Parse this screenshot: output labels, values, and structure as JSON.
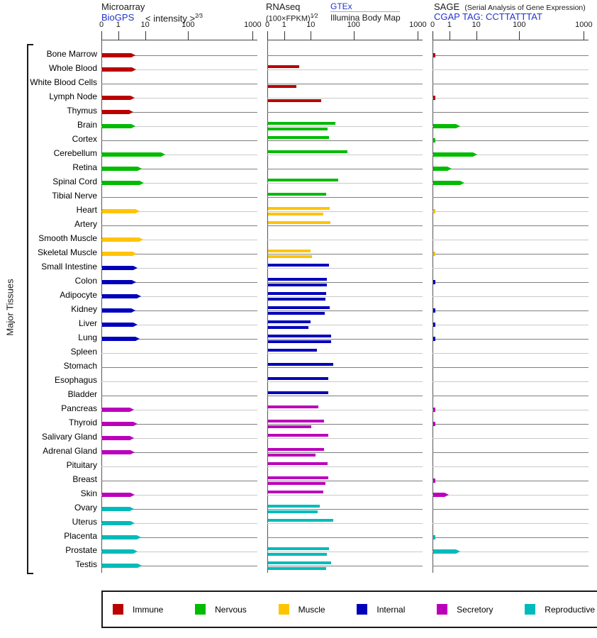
{
  "header": {
    "microarray": {
      "title": "Microarray",
      "link": "BioGPS",
      "scale": "< intensity >",
      "scale_sup": "2⁄3"
    },
    "rnaseq": {
      "title": "RNAseq",
      "scale": "(100×FPKM)",
      "scale_sup": "1⁄2",
      "link": "GTEx",
      "sublabel": "Illumina Body Map"
    },
    "sage": {
      "title": "SAGE",
      "subtitle": "(Serial Analysis of Gene Expression)",
      "link": "CGAP",
      "tag_label": "TAG: CCTTATTTAT"
    }
  },
  "sidebar": {
    "axis_label": "Major Tissues"
  },
  "legend": {
    "items": [
      {
        "label": "Immune",
        "color": "#bb0000"
      },
      {
        "label": "Nervous",
        "color": "#00bb00"
      },
      {
        "label": "Muscle",
        "color": "#ffc400"
      },
      {
        "label": "Internal",
        "color": "#0000bb"
      },
      {
        "label": "Secretory",
        "color": "#bb00bb"
      },
      {
        "label": "Reproductive",
        "color": "#00bbbb"
      }
    ]
  },
  "chart_data": {
    "type": "bar",
    "orientation": "horizontal",
    "note": "ma/gt/il/sg are bar lengths in % of panel width; maV/gtV/ilV/sgV are approximate values read off the 0-1-10-100-1000 axis. gt = RNAseq GTEx bar (above row line), il = RNAseq Illumina Body Map bar (below row line).",
    "axis": {
      "tick_labels": [
        "0",
        "1",
        "10",
        "100",
        "1000"
      ],
      "scale": "decades 0/1/10/100/1000, non-linear"
    },
    "panels": [
      {
        "id": "microarray",
        "source": "BioGPS",
        "units": "intensity^(2/3)"
      },
      {
        "id": "rnaseq",
        "source": "GTEx / Illumina Body Map",
        "units": "(100×FPKM)^(1/2)"
      },
      {
        "id": "sage",
        "source": "CGAP",
        "units": "tag count"
      }
    ],
    "categories": {
      "immune": "#bb0000",
      "nervous": "#00bb00",
      "muscle": "#ffc400",
      "internal": "#0000bb",
      "secretory": "#bb00bb",
      "reproductive": "#00bbbb"
    },
    "rows": [
      {
        "t": "Bone Marrow",
        "c": "immune",
        "ma": 21.4,
        "maV": 4.2,
        "sg": 1.5,
        "sgV": 0.1
      },
      {
        "t": "Whole Blood",
        "c": "immune",
        "ma": 21.8,
        "maV": 4.4,
        "gt": 20.1,
        "gtV": 3.5
      },
      {
        "t": "White Blood Cells",
        "c": "immune",
        "il": 18.3,
        "ilV": 2.7
      },
      {
        "t": "Lymph Node",
        "c": "immune",
        "ma": 20.9,
        "maV": 3.9,
        "il": 34.2,
        "ilV": 17,
        "sg": 1.5,
        "sgV": 0.1
      },
      {
        "t": "Thymus",
        "c": "immune",
        "ma": 20.0,
        "maV": 3.4
      },
      {
        "t": "Brain",
        "c": "nervous",
        "ma": 21.4,
        "maV": 4.2,
        "gt": 43.4,
        "gtV": 34,
        "il": 38.4,
        "ilV": 24,
        "sg": 17.3,
        "sgV": 2.4
      },
      {
        "t": "Cortex",
        "c": "nervous",
        "gt": 39.3,
        "gtV": 26,
        "sg": 1.5,
        "sgV": 0.1
      },
      {
        "t": "Cerebellum",
        "c": "nervous",
        "ma": 40.5,
        "maV": 28,
        "gt": 51.1,
        "gtV": 65,
        "sg": 28.2,
        "sgV": 10
      },
      {
        "t": "Retina",
        "c": "nervous",
        "ma": 25.5,
        "maV": 7.1,
        "sg": 11.8,
        "sgV": 1.1
      },
      {
        "t": "Spinal Cord",
        "c": "nervous",
        "ma": 26.8,
        "maV": 8.4,
        "gt": 45.2,
        "gtV": 39,
        "sg": 20.0,
        "sgV": 3.4
      },
      {
        "t": "Tibial Nerve",
        "c": "nervous",
        "gt": 37.4,
        "gtV": 22
      },
      {
        "t": "Heart",
        "c": "muscle",
        "ma": 24.1,
        "maV": 5.8,
        "gt": 39.7,
        "gtV": 26,
        "il": 35.6,
        "ilV": 19,
        "sg": 1.5,
        "sgV": 0.1
      },
      {
        "t": "Artery",
        "c": "muscle",
        "gt": 40.2,
        "gtV": 27
      },
      {
        "t": "Smooth Muscle",
        "c": "muscle",
        "ma": 26.4,
        "maV": 8.0
      },
      {
        "t": "Skeletal Muscle",
        "c": "muscle",
        "ma": 22.3,
        "maV": 4.6,
        "gt": 27.4,
        "gtV": 9.2,
        "il": 28.3,
        "ilV": 10,
        "sg": 1.5,
        "sgV": 0.1
      },
      {
        "t": "Small Intestine",
        "c": "internal",
        "ma": 22.7,
        "maV": 4.9,
        "gt": 39.3,
        "gtV": 26
      },
      {
        "t": "Colon",
        "c": "internal",
        "ma": 21.8,
        "maV": 4.4,
        "gt": 37.9,
        "gtV": 23,
        "il": 37.9,
        "ilV": 23,
        "sg": 1.5,
        "sgV": 0.1
      },
      {
        "t": "Adipocyte",
        "c": "internal",
        "ma": 25.0,
        "maV": 6.6,
        "gt": 37.4,
        "gtV": 22,
        "il": 37.0,
        "ilV": 21
      },
      {
        "t": "Kidney",
        "c": "internal",
        "ma": 21.4,
        "maV": 4.2,
        "gt": 39.7,
        "gtV": 26,
        "il": 36.5,
        "ilV": 20,
        "sg": 1.5,
        "sgV": 0.1
      },
      {
        "t": "Liver",
        "c": "internal",
        "ma": 22.7,
        "maV": 4.9,
        "gt": 27.4,
        "gtV": 9.2,
        "il": 26.0,
        "ilV": 8.3,
        "sg": 1.5,
        "sgV": 0.1
      },
      {
        "t": "Lung",
        "c": "internal",
        "ma": 24.1,
        "maV": 5.8,
        "gt": 40.6,
        "gtV": 28,
        "il": 40.6,
        "ilV": 28,
        "sg": 1.5,
        "sgV": 0.1
      },
      {
        "t": "Spleen",
        "c": "internal",
        "gt": 31.5,
        "gtV": 13
      },
      {
        "t": "Stomach",
        "c": "internal",
        "gt": 42.0,
        "gtV": 31
      },
      {
        "t": "Esophagus",
        "c": "internal",
        "gt": 38.8,
        "gtV": 25
      },
      {
        "t": "Bladder",
        "c": "internal",
        "gt": 38.8,
        "gtV": 25
      },
      {
        "t": "Pancreas",
        "c": "secretory",
        "ma": 20.5,
        "maV": 3.6,
        "gt": 32.4,
        "gtV": 14,
        "sg": 1.5,
        "sgV": 0.1
      },
      {
        "t": "Thyroid",
        "c": "secretory",
        "ma": 22.7,
        "maV": 4.9,
        "gt": 36.1,
        "gtV": 20,
        "il": 27.9,
        "ilV": 9.9,
        "sg": 1.5,
        "sgV": 0.1
      },
      {
        "t": "Salivary Gland",
        "c": "secretory",
        "ma": 20.5,
        "maV": 3.6,
        "gt": 38.8,
        "gtV": 25
      },
      {
        "t": "Adrenal Gland",
        "c": "secretory",
        "ma": 20.9,
        "maV": 3.9,
        "gt": 36.1,
        "gtV": 20,
        "il": 30.6,
        "ilV": 12
      },
      {
        "t": "Pituitary",
        "c": "secretory",
        "gt": 38.4,
        "gtV": 24
      },
      {
        "t": "Breast",
        "c": "secretory",
        "gt": 38.8,
        "gtV": 25,
        "il": 37.0,
        "ilV": 21,
        "sg": 1.5,
        "sgV": 0.1
      },
      {
        "t": "Skin",
        "c": "secretory",
        "ma": 20.9,
        "maV": 3.9,
        "gt": 35.6,
        "gtV": 19,
        "sg": 10.0,
        "sgV": 0.9
      },
      {
        "t": "Ovary",
        "c": "reproductive",
        "ma": 20.5,
        "maV": 3.6,
        "gt": 33.3,
        "gtV": 16,
        "il": 32.0,
        "ilV": 14
      },
      {
        "t": "Uterus",
        "c": "reproductive",
        "ma": 20.9,
        "maV": 3.9,
        "gt": 42.0,
        "gtV": 31
      },
      {
        "t": "Placenta",
        "c": "reproductive",
        "ma": 25.0,
        "maV": 6.6,
        "sg": 1.5,
        "sgV": 0.1
      },
      {
        "t": "Prostate",
        "c": "reproductive",
        "ma": 22.7,
        "maV": 4.9,
        "gt": 39.3,
        "gtV": 26,
        "il": 37.9,
        "ilV": 23,
        "sg": 17.3,
        "sgV": 2.4
      },
      {
        "t": "Testis",
        "c": "reproductive",
        "ma": 25.5,
        "maV": 7.1,
        "gt": 40.6,
        "gtV": 28,
        "il": 37.4,
        "ilV": 22
      }
    ]
  }
}
